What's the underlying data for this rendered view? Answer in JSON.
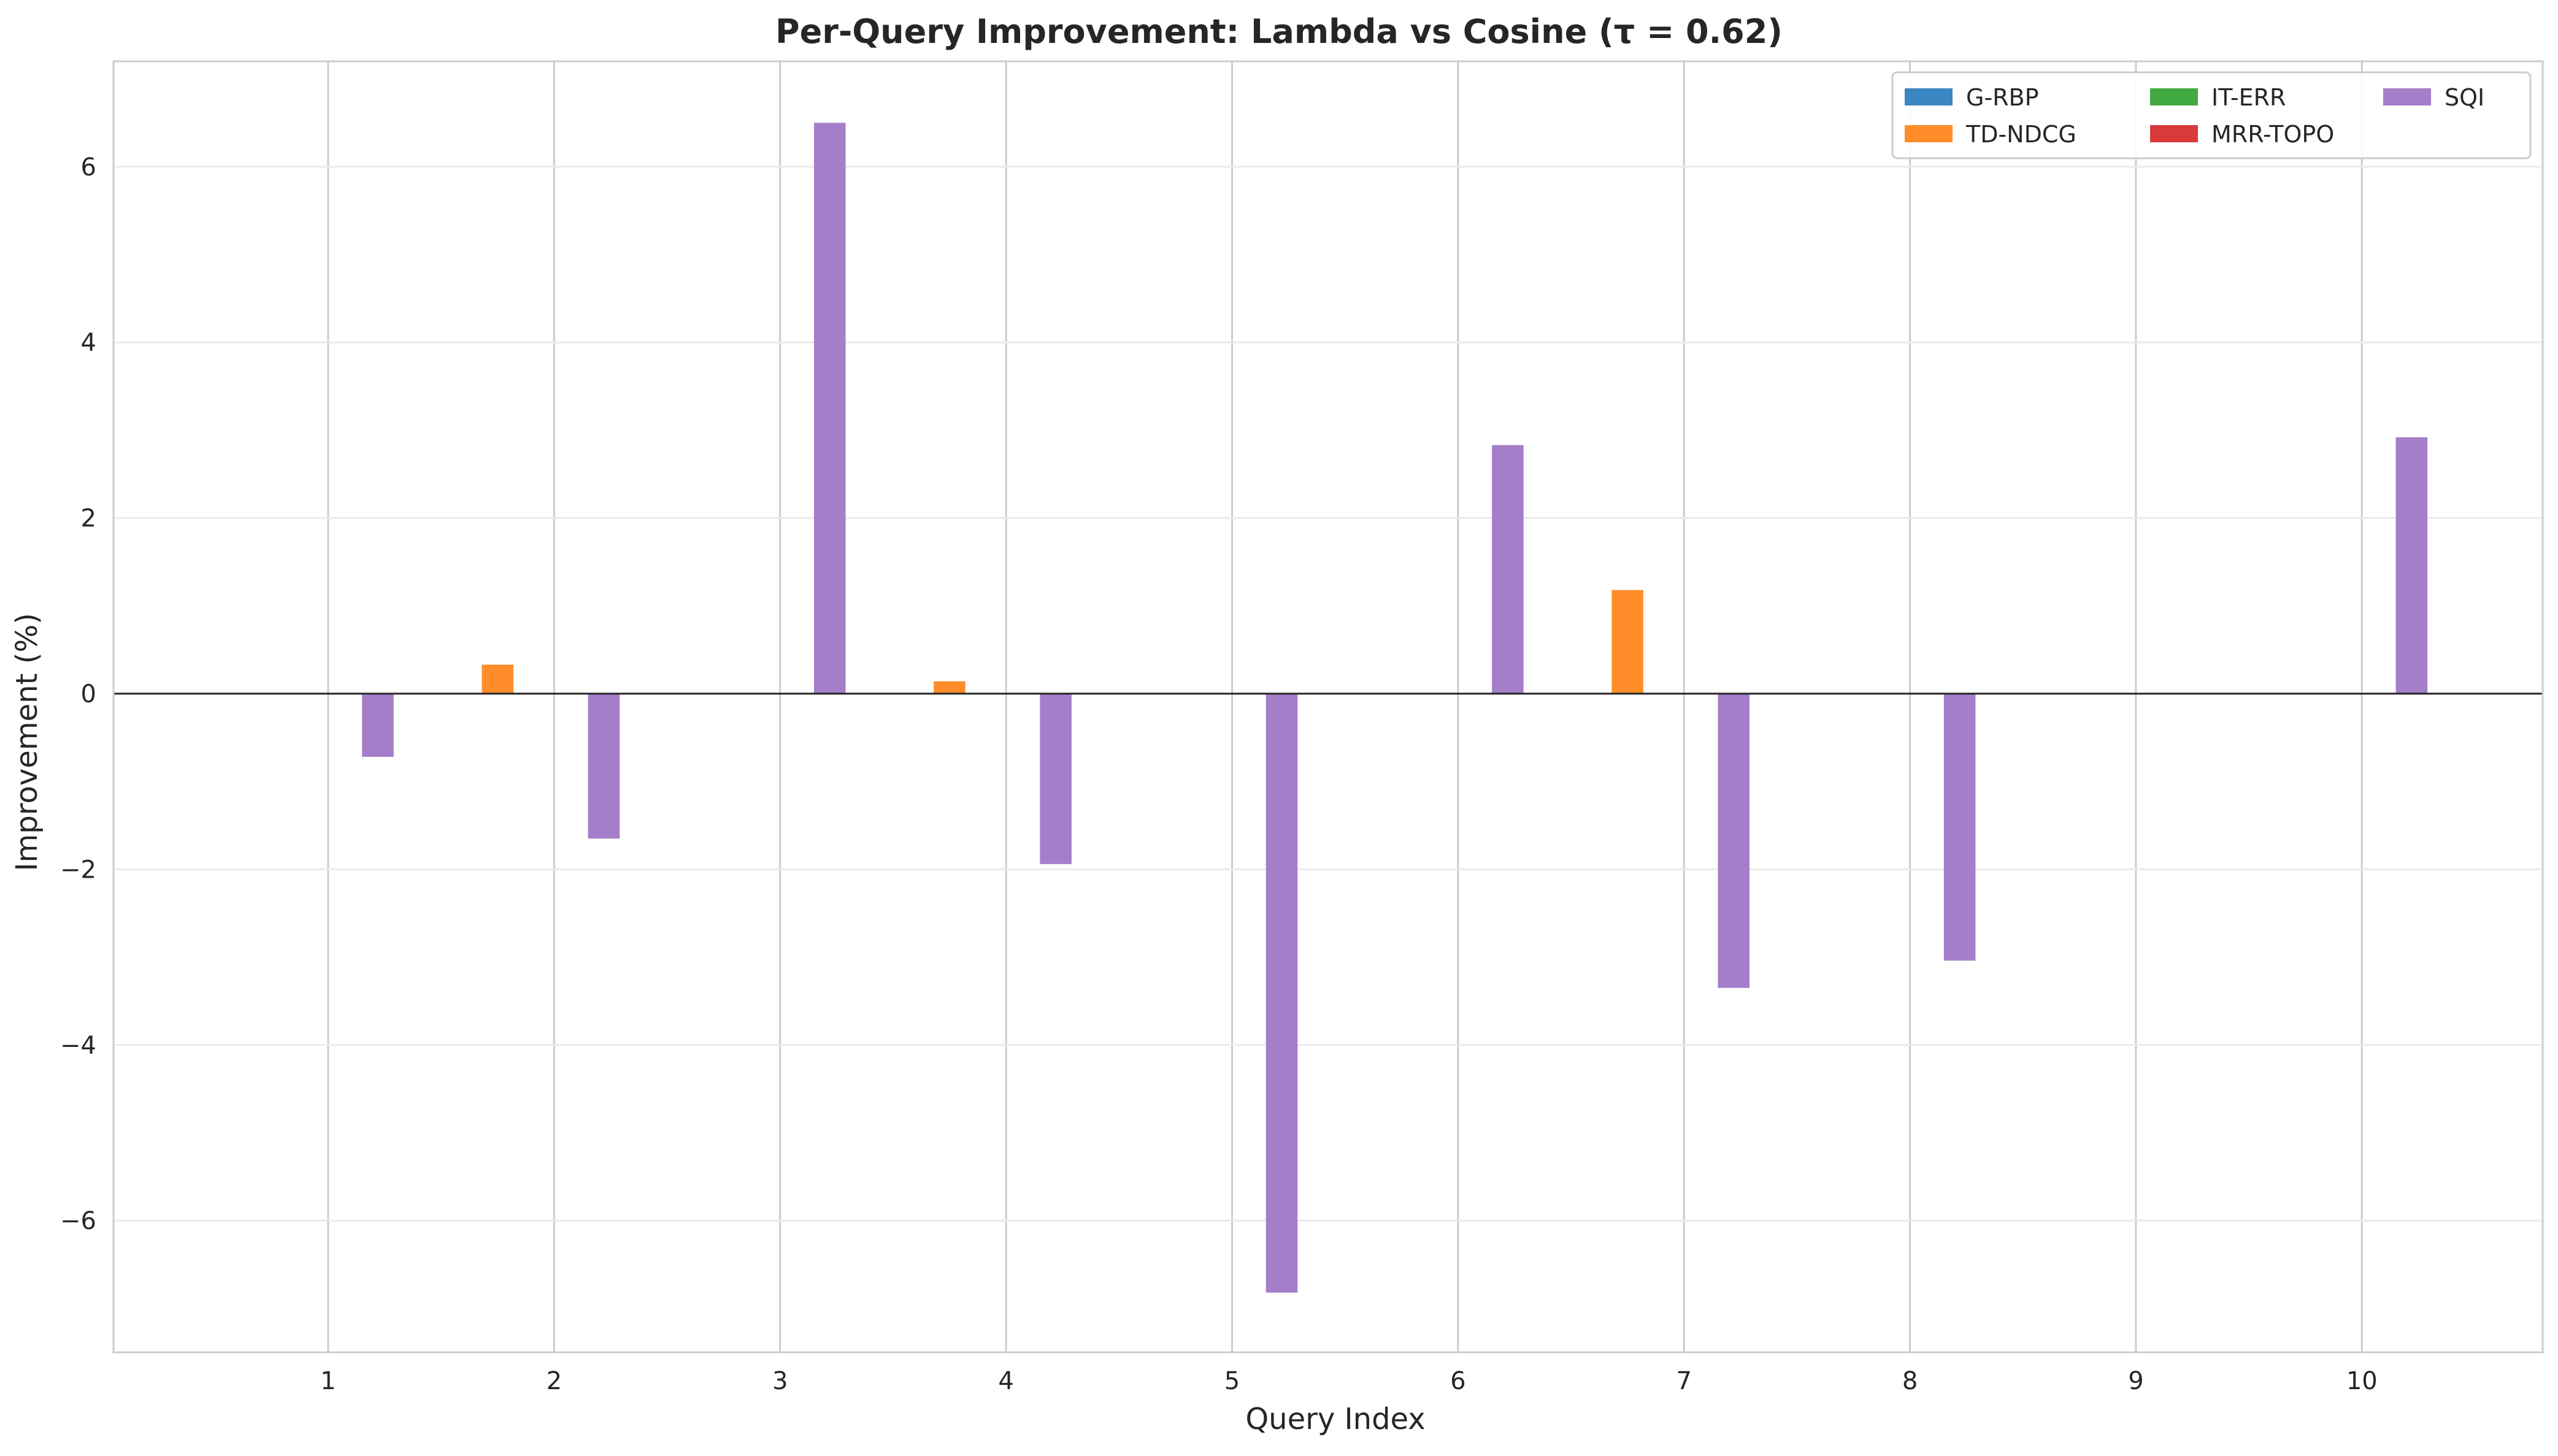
{
  "chart_data": {
    "type": "bar",
    "title": "Per-Query Improvement: Lambda vs Cosine (τ = 0.62)",
    "xlabel": "Query Index",
    "ylabel": "Improvement (%)",
    "categories": [
      "1",
      "2",
      "3",
      "4",
      "5",
      "6",
      "7",
      "8",
      "9",
      "10"
    ],
    "x_ticks": [
      "1",
      "2",
      "3",
      "4",
      "5",
      "6",
      "7",
      "8",
      "9",
      "10"
    ],
    "y_ticks": [
      {
        "value": -6,
        "label": "−6"
      },
      {
        "value": -4,
        "label": "−4"
      },
      {
        "value": -2,
        "label": "−2"
      },
      {
        "value": 0,
        "label": "0"
      },
      {
        "value": 2,
        "label": "2"
      },
      {
        "value": 4,
        "label": "4"
      },
      {
        "value": 6,
        "label": "6"
      }
    ],
    "ylim": [
      -7.5,
      7.2
    ],
    "xlim": [
      0.05,
      10.8
    ],
    "grid": true,
    "legend_position": "top-right",
    "series": [
      {
        "name": "G-RBP",
        "color": "#3a86c3",
        "offset": -0.5,
        "values": [
          0,
          0,
          0,
          0,
          0,
          0,
          0,
          0,
          0,
          0
        ]
      },
      {
        "name": "TD-NDCG",
        "color": "#ff8d2a",
        "offset": -0.25,
        "values": [
          0,
          0.33,
          0,
          0.14,
          0,
          0,
          1.18,
          0,
          0,
          0
        ]
      },
      {
        "name": "IT-ERR",
        "color": "#40a940",
        "offset": 0,
        "values": [
          0,
          0,
          0,
          0,
          0,
          0,
          0,
          0,
          0,
          0
        ]
      },
      {
        "name": "MRR-TOPO",
        "color": "#d83a3a",
        "offset": 0.0,
        "values": [
          0,
          0,
          0,
          0,
          0,
          0,
          0,
          0,
          0,
          0
        ]
      },
      {
        "name": "SQI",
        "color": "#a57ec9",
        "offset": 0.22,
        "values": [
          -0.72,
          -1.65,
          6.5,
          -1.94,
          -6.82,
          2.83,
          -3.35,
          -3.04,
          0,
          2.92
        ]
      }
    ]
  }
}
